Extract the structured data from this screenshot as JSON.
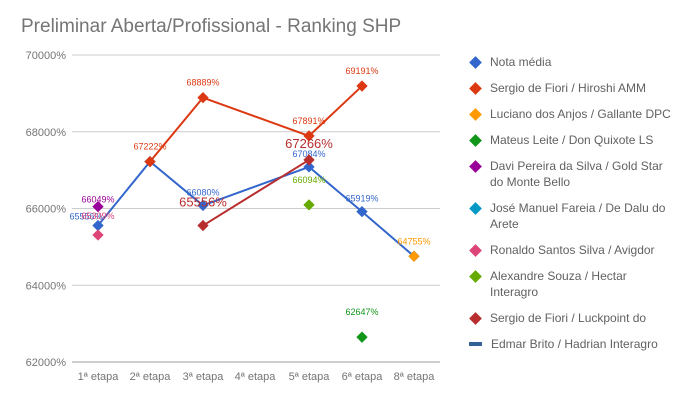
{
  "title": "Preliminar Aberta/Profissional - Ranking SHP",
  "legend": [
    {
      "label": "Nota média",
      "color": "#3366cc",
      "shape": "diamond"
    },
    {
      "label": "Sergio de Fiori / Hiroshi AMM",
      "color": "#dc3912",
      "shape": "diamond"
    },
    {
      "label": "Luciano dos Anjos / Gallante DPC",
      "color": "#ff9900",
      "shape": "diamond"
    },
    {
      "label": "Mateus Leite / Don Quixote LS",
      "color": "#109618",
      "shape": "diamond"
    },
    {
      "label": "Davi Pereira da Silva / Gold Star do Monte Bello",
      "color": "#990099",
      "shape": "diamond"
    },
    {
      "label": "José Manuel Fareia / De Dalu do Arete",
      "color": "#0099c6",
      "shape": "diamond"
    },
    {
      "label": " Ronaldo Santos Silva / Avigdor",
      "color": "#dd4477",
      "shape": "diamond"
    },
    {
      "label": "Alexandre Souza / Hectar Interagro",
      "color": "#66aa00",
      "shape": "diamond"
    },
    {
      "label": "Sergio de Fiori / Luckpoint do",
      "color": "#b82e2e",
      "shape": "diamond"
    },
    {
      "label": "Edmar Brito / Hadrian Interagro",
      "color": "#316395",
      "shape": "line"
    }
  ],
  "chart_data": {
    "type": "line",
    "title": "Preliminar Aberta/Profissional - Ranking SHP",
    "xlabel": "",
    "ylabel": "",
    "categories": [
      "1ª etapa",
      "2ª etapa",
      "3ª etapa",
      "4ª etapa",
      "5ª etapa",
      "6ª etapa",
      "8ª etapa"
    ],
    "ylim": [
      62000,
      70000
    ],
    "yticks": [
      "62000%",
      "64000%",
      "66000%",
      "68000%",
      "70000%"
    ],
    "grid": true,
    "legend_position": "right",
    "series": [
      {
        "name": "Nota média",
        "color": "#3366cc",
        "values": [
          65556,
          67222,
          66080,
          null,
          67084,
          65919,
          64755
        ],
        "labels": [
          "65556%",
          null,
          "66080%",
          null,
          "67084%",
          "65919%",
          null
        ]
      },
      {
        "name": "Sergio de Fiori / Hiroshi AMM",
        "color": "#dc3912",
        "values": [
          null,
          67222,
          68889,
          null,
          67891,
          69191,
          null
        ],
        "labels": [
          null,
          "67222%",
          "68889%",
          null,
          "67891%",
          "69191%",
          null
        ]
      },
      {
        "name": "Luciano dos Anjos / Gallante DPC",
        "color": "#ff9900",
        "values": [
          null,
          null,
          null,
          null,
          null,
          null,
          64755
        ],
        "labels": [
          null,
          null,
          null,
          null,
          null,
          null,
          "64755%"
        ]
      },
      {
        "name": "Mateus Leite / Don Quixote LS",
        "color": "#109618",
        "values": [
          null,
          null,
          null,
          null,
          null,
          62647,
          null
        ],
        "labels": [
          null,
          null,
          null,
          null,
          null,
          "62647%",
          null
        ]
      },
      {
        "name": "Davi Pereira da Silva / Gold Star do Monte Bello",
        "color": "#990099",
        "values": [
          66049,
          null,
          null,
          null,
          null,
          null,
          null
        ],
        "labels": [
          "66049%",
          null,
          null,
          null,
          null,
          null,
          null
        ]
      },
      {
        "name": "José Manuel Fareia / De Dalu do Arete",
        "color": "#0099c6",
        "values": [
          null,
          null,
          null,
          null,
          null,
          null,
          null
        ],
        "labels": []
      },
      {
        "name": " Ronaldo Santos Silva / Avigdor",
        "color": "#dd4477",
        "values": [
          65309,
          null,
          null,
          null,
          null,
          null,
          null
        ],
        "labels": [
          "65309%",
          null,
          null,
          null,
          null,
          null,
          null
        ]
      },
      {
        "name": "Alexandre Souza / Hectar Interagro",
        "color": "#66aa00",
        "values": [
          null,
          null,
          null,
          null,
          66094,
          null,
          null
        ],
        "labels": [
          null,
          null,
          null,
          null,
          "66094%",
          null,
          null
        ]
      },
      {
        "name": "Sergio de Fiori / Luckpoint do",
        "color": "#b82e2e",
        "values": [
          null,
          null,
          65556,
          null,
          67266,
          null,
          null
        ],
        "labels": [
          null,
          null,
          "65556%",
          null,
          "67266%",
          null,
          null
        ]
      },
      {
        "name": "Edmar Brito / Hadrian Interagro",
        "color": "#316395",
        "values": [
          null,
          null,
          null,
          null,
          null,
          null,
          null
        ],
        "labels": []
      }
    ]
  }
}
